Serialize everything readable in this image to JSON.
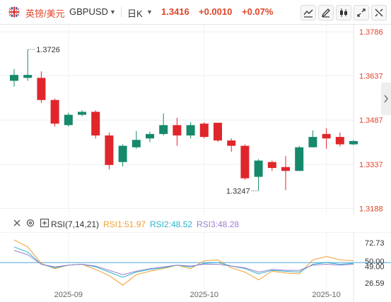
{
  "header": {
    "pair_name": "英镑/美元",
    "symbol": "GBPUSD",
    "period": "日K",
    "price": "1.3416",
    "change": "+0.0010",
    "change_pct": "+0.07%"
  },
  "toolbar": {
    "icons": [
      "line-tool-icon",
      "pencil-icon",
      "candlestick-type-icon",
      "fullscreen-icon",
      "settings-icon"
    ]
  },
  "colors": {
    "up": "#e0262b",
    "down": "#16896b",
    "accent": "#e0442a",
    "rsi1": "#f0a030",
    "rsi2": "#2eb3c8",
    "rsi3": "#9a7fd0",
    "ref_line": "#4aa0e0"
  },
  "rsi_panel": {
    "name": "RSI(7,14,21)",
    "rsi1_label": "RSI1:51.97",
    "rsi2_label": "RSI2:48.52",
    "rsi3_label": "RSI3:48.28"
  },
  "chart_data": [
    {
      "type": "candlestick",
      "ylim": [
        1.3165,
        1.381
      ],
      "y_ticks": [
        "1.3786",
        "1.3637",
        "1.3487",
        "1.3337",
        "1.3188"
      ],
      "x_ticks": [
        "2025-09",
        "2025-10",
        "2025-10"
      ],
      "x_tick_index": [
        4,
        14,
        23
      ],
      "annotations": [
        {
          "text": "1.3726",
          "index": 1,
          "value": 1.3726,
          "side": "right"
        },
        {
          "text": "1.3247",
          "index": 18,
          "value": 1.3247,
          "side": "left"
        }
      ],
      "candles": [
        {
          "o": 1.362,
          "c": 1.364,
          "h": 1.366,
          "l": 1.36
        },
        {
          "o": 1.363,
          "c": 1.364,
          "h": 1.3726,
          "l": 1.362
        },
        {
          "o": 1.363,
          "c": 1.3555,
          "h": 1.3652,
          "l": 1.3545
        },
        {
          "o": 1.3555,
          "c": 1.3475,
          "h": 1.356,
          "l": 1.3465
        },
        {
          "o": 1.347,
          "c": 1.3505,
          "h": 1.3512,
          "l": 1.3465
        },
        {
          "o": 1.3505,
          "c": 1.3515,
          "h": 1.352,
          "l": 1.35
        },
        {
          "o": 1.3515,
          "c": 1.3435,
          "h": 1.352,
          "l": 1.3425
        },
        {
          "o": 1.3435,
          "c": 1.3335,
          "h": 1.3445,
          "l": 1.332
        },
        {
          "o": 1.3345,
          "c": 1.34,
          "h": 1.3405,
          "l": 1.333
        },
        {
          "o": 1.3395,
          "c": 1.342,
          "h": 1.345,
          "l": 1.339
        },
        {
          "o": 1.3425,
          "c": 1.344,
          "h": 1.3448,
          "l": 1.3412
        },
        {
          "o": 1.344,
          "c": 1.347,
          "h": 1.351,
          "l": 1.3435
        },
        {
          "o": 1.347,
          "c": 1.3435,
          "h": 1.3495,
          "l": 1.34
        },
        {
          "o": 1.3435,
          "c": 1.347,
          "h": 1.348,
          "l": 1.3425
        },
        {
          "o": 1.3475,
          "c": 1.343,
          "h": 1.348,
          "l": 1.3425
        },
        {
          "o": 1.3478,
          "c": 1.3418,
          "h": 1.3478,
          "l": 1.3413
        },
        {
          "o": 1.3418,
          "c": 1.34,
          "h": 1.3425,
          "l": 1.338
        },
        {
          "o": 1.34,
          "c": 1.329,
          "h": 1.3405,
          "l": 1.3285
        },
        {
          "o": 1.3295,
          "c": 1.335,
          "h": 1.3355,
          "l": 1.3247
        },
        {
          "o": 1.3345,
          "c": 1.3325,
          "h": 1.335,
          "l": 1.3315
        },
        {
          "o": 1.3328,
          "c": 1.3315,
          "h": 1.3365,
          "l": 1.325
        },
        {
          "o": 1.3315,
          "c": 1.3395,
          "h": 1.34,
          "l": 1.3315
        },
        {
          "o": 1.3395,
          "c": 1.343,
          "h": 1.3452,
          "l": 1.3395
        },
        {
          "o": 1.344,
          "c": 1.3425,
          "h": 1.346,
          "l": 1.339
        },
        {
          "o": 1.343,
          "c": 1.3405,
          "h": 1.3445,
          "l": 1.3398
        },
        {
          "o": 1.3405,
          "c": 1.3416,
          "h": 1.342,
          "l": 1.3402
        }
      ]
    },
    {
      "type": "line",
      "title": "RSI(7,14,21)",
      "ylim": [
        20,
        85
      ],
      "y_ticks": [
        "72.73",
        "50.00",
        "49.00",
        "26.59"
      ],
      "reference_line": 50,
      "series": [
        {
          "name": "RSI1",
          "values": [
            76,
            68,
            49,
            43,
            47,
            48,
            42,
            35,
            24,
            36,
            40,
            43,
            47,
            43,
            52,
            53,
            44,
            39,
            30,
            40,
            38,
            37,
            53,
            57,
            53,
            52
          ]
        },
        {
          "name": "RSI2",
          "values": [
            68,
            62,
            48,
            44,
            47,
            48,
            45,
            39,
            33,
            39,
            42,
            44,
            47,
            45,
            49,
            50,
            46,
            43,
            37,
            41,
            40,
            39,
            48,
            50,
            48,
            49
          ]
        },
        {
          "name": "RSI3",
          "values": [
            64,
            59,
            48,
            45,
            47,
            48,
            46,
            41,
            36,
            40,
            43,
            45,
            47,
            46,
            48,
            48,
            46,
            44,
            39,
            42,
            41,
            41,
            47,
            48,
            47,
            48
          ]
        }
      ]
    }
  ]
}
